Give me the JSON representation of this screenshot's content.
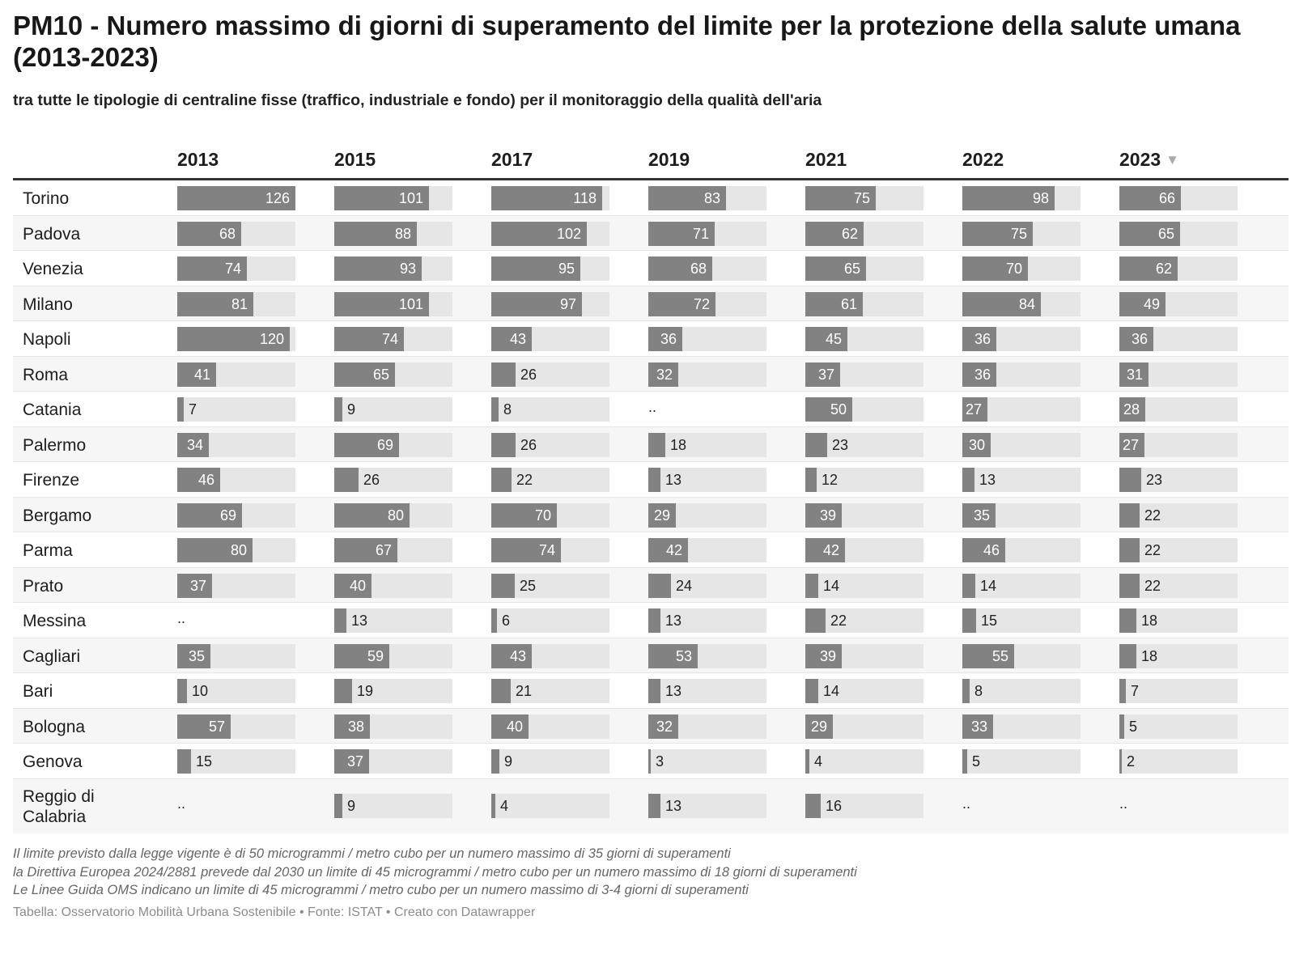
{
  "title": "PM10 - Numero massimo di giorni di superamento del limite per la protezione della salute umana (2013-2023)",
  "subtitle": "tra tutte le tipologie di centraline fisse (traffico, industriale e fondo) per il monitoraggio della qualità dell'aria",
  "sort_icon": "sort-descending-icon",
  "colors": {
    "bar": "#828282",
    "bar_background": "#e6e6e6",
    "row_shade": "#f6f6f6"
  },
  "chart_data": {
    "type": "table",
    "columns": [
      "2013",
      "2015",
      "2017",
      "2019",
      "2021",
      "2022",
      "2023"
    ],
    "sorted_by": "2023",
    "max_value": 126,
    "missing_label": "..",
    "rows": [
      {
        "city": "Torino",
        "values": [
          126,
          101,
          118,
          83,
          75,
          98,
          66
        ]
      },
      {
        "city": "Padova",
        "values": [
          68,
          88,
          102,
          71,
          62,
          75,
          65
        ]
      },
      {
        "city": "Venezia",
        "values": [
          74,
          93,
          95,
          68,
          65,
          70,
          62
        ]
      },
      {
        "city": "Milano",
        "values": [
          81,
          101,
          97,
          72,
          61,
          84,
          49
        ]
      },
      {
        "city": "Napoli",
        "values": [
          120,
          74,
          43,
          36,
          45,
          36,
          36
        ]
      },
      {
        "city": "Roma",
        "values": [
          41,
          65,
          26,
          32,
          37,
          36,
          31
        ]
      },
      {
        "city": "Catania",
        "values": [
          7,
          9,
          8,
          null,
          50,
          27,
          28
        ]
      },
      {
        "city": "Palermo",
        "values": [
          34,
          69,
          26,
          18,
          23,
          30,
          27
        ]
      },
      {
        "city": "Firenze",
        "values": [
          46,
          26,
          22,
          13,
          12,
          13,
          23
        ]
      },
      {
        "city": "Bergamo",
        "values": [
          69,
          80,
          70,
          29,
          39,
          35,
          22
        ]
      },
      {
        "city": "Parma",
        "values": [
          80,
          67,
          74,
          42,
          42,
          46,
          22
        ]
      },
      {
        "city": "Prato",
        "values": [
          37,
          40,
          25,
          24,
          14,
          14,
          22
        ]
      },
      {
        "city": "Messina",
        "values": [
          null,
          13,
          6,
          13,
          22,
          15,
          18
        ]
      },
      {
        "city": "Cagliari",
        "values": [
          35,
          59,
          43,
          53,
          39,
          55,
          18
        ]
      },
      {
        "city": "Bari",
        "values": [
          10,
          19,
          21,
          13,
          14,
          8,
          7
        ]
      },
      {
        "city": "Bologna",
        "values": [
          57,
          38,
          40,
          32,
          29,
          33,
          5
        ]
      },
      {
        "city": "Genova",
        "values": [
          15,
          37,
          9,
          3,
          4,
          5,
          2
        ]
      },
      {
        "city": "Reggio di Calabria",
        "values": [
          null,
          9,
          4,
          13,
          16,
          null,
          null
        ]
      }
    ]
  },
  "notes": [
    "Il limite previsto dalla legge vigente è di 50 microgrammi / metro cubo per un numero massimo di 35 giorni di superamenti",
    "la Direttiva Europea 2024/2881 prevede dal 2030 un limite di 45 microgrammi / metro cubo per un numero massimo di 18 giorni di superamenti",
    "Le Linee Guida OMS indicano un limite di 45 microgrammi / metro cubo per un numero massimo di 3-4 giorni di superamenti"
  ],
  "footer": "Tabella: Osservatorio Mobilità Urbana Sostenibile • Fonte: ISTAT • Creato con Datawrapper"
}
